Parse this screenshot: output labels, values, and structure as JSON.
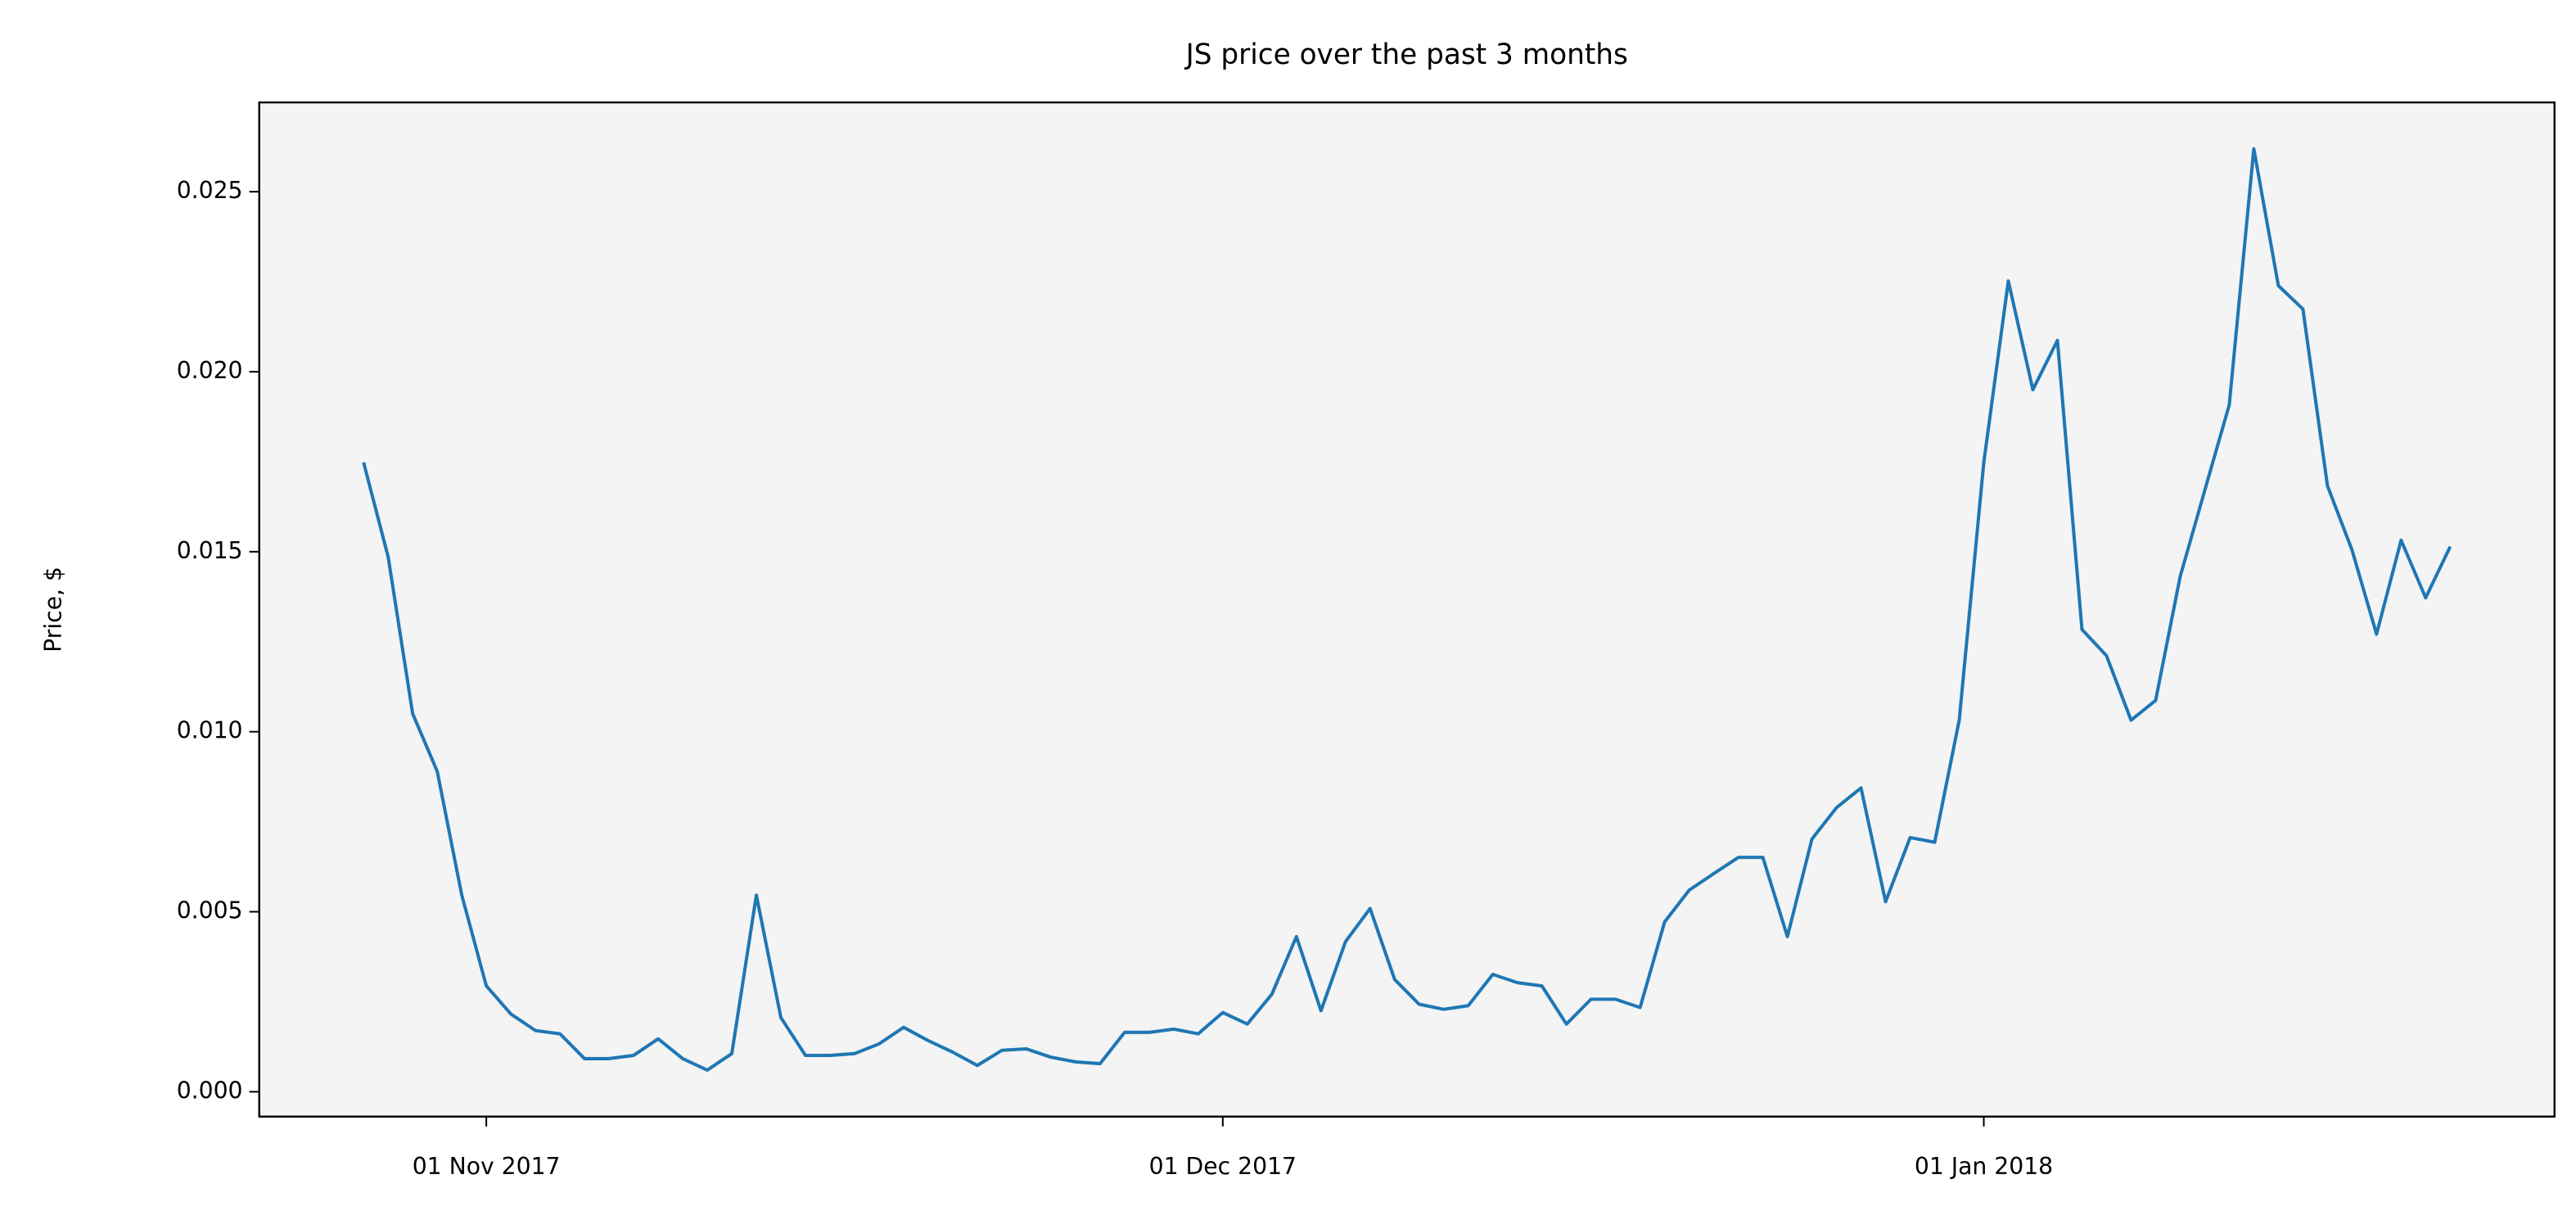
{
  "chart_data": {
    "type": "line",
    "title": "JS price over the past 3 months",
    "y_label": "Price, $",
    "x": [
      "2017-10-27",
      "2017-10-28",
      "2017-10-29",
      "2017-10-30",
      "2017-10-31",
      "2017-11-01",
      "2017-11-02",
      "2017-11-03",
      "2017-11-04",
      "2017-11-05",
      "2017-11-06",
      "2017-11-07",
      "2017-11-08",
      "2017-11-09",
      "2017-11-10",
      "2017-11-11",
      "2017-11-12",
      "2017-11-13",
      "2017-11-14",
      "2017-11-15",
      "2017-11-16",
      "2017-11-17",
      "2017-11-18",
      "2017-11-19",
      "2017-11-20",
      "2017-11-21",
      "2017-11-22",
      "2017-11-23",
      "2017-11-24",
      "2017-11-25",
      "2017-11-26",
      "2017-11-27",
      "2017-11-28",
      "2017-11-29",
      "2017-11-30",
      "2017-12-01",
      "2017-12-02",
      "2017-12-03",
      "2017-12-04",
      "2017-12-05",
      "2017-12-06",
      "2017-12-07",
      "2017-12-08",
      "2017-12-09",
      "2017-12-10",
      "2017-12-11",
      "2017-12-12",
      "2017-12-13",
      "2017-12-14",
      "2017-12-15",
      "2017-12-16",
      "2017-12-17",
      "2017-12-18",
      "2017-12-19",
      "2017-12-20",
      "2017-12-21",
      "2017-12-22",
      "2017-12-23",
      "2017-12-24",
      "2017-12-25",
      "2017-12-26",
      "2017-12-27",
      "2017-12-28",
      "2017-12-29",
      "2017-12-30",
      "2017-12-31",
      "2018-01-01",
      "2018-01-02",
      "2018-01-03",
      "2018-01-04",
      "2018-01-05",
      "2018-01-06",
      "2018-01-07",
      "2018-01-08",
      "2018-01-09",
      "2018-01-10",
      "2018-01-11",
      "2018-01-12",
      "2018-01-13",
      "2018-01-14",
      "2018-01-15",
      "2018-01-16",
      "2018-01-17",
      "2018-01-18",
      "2018-01-19",
      "2018-01-20"
    ],
    "series": [
      {
        "name": "JS",
        "color": "#1f77b4",
        "values": [
          0.01748,
          0.01486,
          0.0105,
          0.0089,
          0.00546,
          0.00294,
          0.00216,
          0.0017,
          0.00161,
          0.00092,
          0.00092,
          0.00101,
          0.00147,
          0.00092,
          0.0006,
          0.00106,
          0.00546,
          0.00206,
          0.00101,
          0.00101,
          0.00106,
          0.00133,
          0.00179,
          0.00142,
          0.0011,
          0.00073,
          0.00115,
          0.00119,
          0.00096,
          0.00083,
          0.00078,
          0.00165,
          0.00165,
          0.00174,
          0.00161,
          0.0022,
          0.00188,
          0.00271,
          0.00431,
          0.00225,
          0.00417,
          0.00509,
          0.00312,
          0.00243,
          0.00229,
          0.00239,
          0.00326,
          0.00303,
          0.00294,
          0.00188,
          0.00257,
          0.00257,
          0.00234,
          0.00472,
          0.0056,
          0.00606,
          0.00651,
          0.00651,
          0.00431,
          0.00702,
          0.00789,
          0.00844,
          0.00528,
          0.00706,
          0.00693,
          0.01032,
          0.01748,
          0.02252,
          0.0195,
          0.02087,
          0.01284,
          0.01211,
          0.01032,
          0.01087,
          0.01431,
          0.0167,
          0.01908,
          0.02619,
          0.02239,
          0.02174,
          0.01683,
          0.01505,
          0.01271,
          0.01532,
          0.01372,
          0.01514
        ]
      }
    ],
    "xlim": [
      "2017-10-22T18:00:00Z",
      "2018-01-24T06:00:00Z"
    ],
    "xticks": [
      {
        "value": "2017-11-01",
        "label": "01 Nov 2017"
      },
      {
        "value": "2017-12-01",
        "label": "01 Dec 2017"
      },
      {
        "value": "2018-01-01",
        "label": "01 Jan 2018"
      }
    ],
    "ylim": [
      -0.00069,
      0.02748
    ],
    "yticks": [
      {
        "value": 0,
        "label": "0.000"
      },
      0.005,
      {
        "value": 0.01,
        "label": "0.010"
      },
      0.015,
      {
        "value": 0.02,
        "label": "0.020"
      },
      0.025
    ],
    "grid": false,
    "background": "#f4f4f4"
  }
}
